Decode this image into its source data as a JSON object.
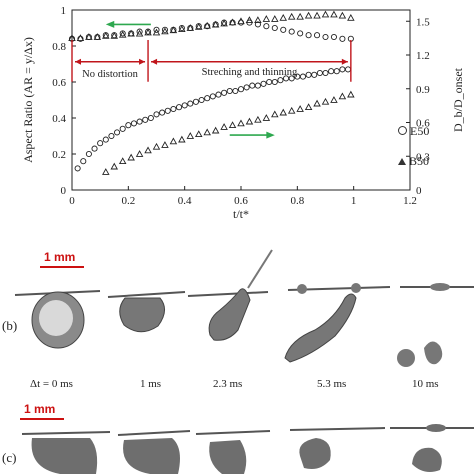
{
  "chart_data": {
    "type": "scatter",
    "title": "",
    "xlabel": "t/t*",
    "ylabel_left": "Aspect Ratio (AR = y/Δx)",
    "ylabel_right": "D_b/D_onset",
    "xlim": [
      0,
      1.2
    ],
    "ylim_left": [
      0,
      1
    ],
    "ylim_right": [
      0,
      1.6
    ],
    "x_ticks": [
      "0",
      "0.2",
      "0.4",
      "0.6",
      "0.8",
      "1",
      "1.2"
    ],
    "y_left_ticks": [
      "0",
      "0.2",
      "0.4",
      "0.6",
      "0.8",
      "1"
    ],
    "y_right_ticks": [
      "0",
      "0.3",
      "0.6",
      "0.9",
      "1.2",
      "1.5"
    ],
    "grid": false,
    "annotations": {
      "region_left": "No distortion",
      "region_right": "Streching and thinning",
      "region_boundary_x": 0.27,
      "region_arrow_y_right": 1.14
    },
    "legend": [
      {
        "marker": "circle",
        "label": "E50"
      },
      {
        "marker": "triangle",
        "label": "B50"
      }
    ],
    "series": [
      {
        "name": "E50",
        "marker": "circle",
        "axis": "left",
        "x": [
          0.02,
          0.04,
          0.06,
          0.08,
          0.1,
          0.12,
          0.14,
          0.16,
          0.18,
          0.2,
          0.22,
          0.24,
          0.26,
          0.28,
          0.3,
          0.32,
          0.34,
          0.36,
          0.38,
          0.4,
          0.42,
          0.44,
          0.46,
          0.48,
          0.5,
          0.52,
          0.54,
          0.56,
          0.58,
          0.6,
          0.62,
          0.64,
          0.66,
          0.68,
          0.7,
          0.72,
          0.74,
          0.76,
          0.78,
          0.8,
          0.82,
          0.84,
          0.86,
          0.88,
          0.9,
          0.92,
          0.94,
          0.96,
          0.98
        ],
        "y": [
          0.12,
          0.16,
          0.2,
          0.23,
          0.26,
          0.28,
          0.3,
          0.32,
          0.34,
          0.36,
          0.37,
          0.38,
          0.39,
          0.4,
          0.42,
          0.43,
          0.44,
          0.45,
          0.46,
          0.47,
          0.48,
          0.49,
          0.5,
          0.51,
          0.52,
          0.53,
          0.54,
          0.55,
          0.55,
          0.56,
          0.57,
          0.58,
          0.58,
          0.59,
          0.6,
          0.6,
          0.61,
          0.62,
          0.62,
          0.63,
          0.63,
          0.64,
          0.64,
          0.65,
          0.65,
          0.66,
          0.66,
          0.67,
          0.67
        ]
      },
      {
        "name": "B50",
        "marker": "triangle",
        "axis": "left",
        "x": [
          0.12,
          0.15,
          0.18,
          0.21,
          0.24,
          0.27,
          0.3,
          0.33,
          0.36,
          0.39,
          0.42,
          0.45,
          0.48,
          0.51,
          0.54,
          0.57,
          0.6,
          0.63,
          0.66,
          0.69,
          0.72,
          0.75,
          0.78,
          0.81,
          0.84,
          0.87,
          0.9,
          0.93,
          0.96,
          0.99
        ],
        "y": [
          0.1,
          0.13,
          0.16,
          0.18,
          0.2,
          0.22,
          0.24,
          0.25,
          0.27,
          0.28,
          0.3,
          0.31,
          0.32,
          0.33,
          0.35,
          0.36,
          0.37,
          0.38,
          0.39,
          0.4,
          0.42,
          0.43,
          0.44,
          0.45,
          0.46,
          0.48,
          0.49,
          0.5,
          0.52,
          0.53
        ]
      },
      {
        "name": "AR (upper)",
        "marker": "circle",
        "axis": "left",
        "x": [
          0.0,
          0.03,
          0.06,
          0.09,
          0.12,
          0.15,
          0.18,
          0.21,
          0.24,
          0.27,
          0.3,
          0.33,
          0.36,
          0.39,
          0.42,
          0.45,
          0.48,
          0.51,
          0.54,
          0.57,
          0.6,
          0.63,
          0.66,
          0.69,
          0.72,
          0.75,
          0.78,
          0.81,
          0.84,
          0.87,
          0.9,
          0.93,
          0.96,
          0.99
        ],
        "y": [
          0.84,
          0.84,
          0.85,
          0.85,
          0.86,
          0.86,
          0.87,
          0.87,
          0.88,
          0.88,
          0.89,
          0.89,
          0.89,
          0.9,
          0.9,
          0.91,
          0.91,
          0.92,
          0.93,
          0.93,
          0.93,
          0.93,
          0.92,
          0.91,
          0.9,
          0.89,
          0.88,
          0.87,
          0.86,
          0.86,
          0.85,
          0.85,
          0.84,
          0.84
        ]
      },
      {
        "name": "Db/Donset",
        "marker": "triangle",
        "axis": "right",
        "x": [
          0.0,
          0.03,
          0.06,
          0.09,
          0.12,
          0.15,
          0.18,
          0.21,
          0.24,
          0.27,
          0.3,
          0.33,
          0.36,
          0.39,
          0.42,
          0.45,
          0.48,
          0.51,
          0.54,
          0.57,
          0.6,
          0.63,
          0.66,
          0.69,
          0.72,
          0.75,
          0.78,
          0.81,
          0.84,
          0.87,
          0.9,
          0.93,
          0.96,
          0.99
        ],
        "y": [
          1.35,
          1.35,
          1.36,
          1.36,
          1.37,
          1.37,
          1.38,
          1.39,
          1.39,
          1.4,
          1.4,
          1.41,
          1.42,
          1.43,
          1.44,
          1.45,
          1.46,
          1.47,
          1.48,
          1.49,
          1.5,
          1.51,
          1.51,
          1.52,
          1.52,
          1.53,
          1.54,
          1.54,
          1.55,
          1.55,
          1.56,
          1.56,
          1.55,
          1.53
        ]
      }
    ]
  },
  "panel_b": {
    "tag": "(b)",
    "scale_bar": "1 mm",
    "time_labels": [
      "Δt = 0 ms",
      "1 ms",
      "2.3 ms",
      "5.3 ms",
      "10 ms"
    ]
  },
  "panel_c": {
    "tag": "(c)",
    "scale_bar": "1 mm"
  },
  "colors": {
    "green_arrow": "#2ea84f",
    "red_annotation": "#c0151b",
    "droplet": "#6e6e6e"
  }
}
